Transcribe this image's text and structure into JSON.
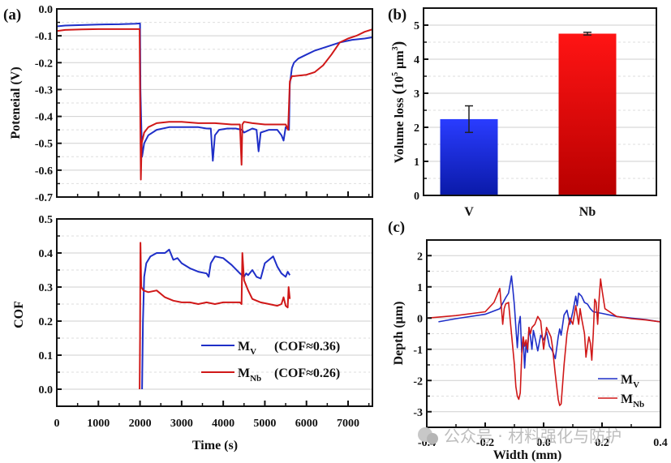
{
  "colors": {
    "blue": "#1f2fc8",
    "red": "#d01818",
    "bar_blue_top": "#2a3cff",
    "bar_blue_bottom": "#0a1aa8",
    "bar_red_top": "#ff1414",
    "bar_red_bottom": "#b80000",
    "grid_major": "#cfcfcf",
    "grid_minor": "#dedede"
  },
  "watermark": "公众号 · 材料强化与防护",
  "chart_data": [
    {
      "id": "a_potential",
      "panel_label": "(a)",
      "type": "line",
      "title": "",
      "xlabel": "",
      "ylabel": "Poteneial (V)",
      "xlim": [
        0,
        7600
      ],
      "ylim": [
        -0.7,
        0.0
      ],
      "x_ticks": [
        0,
        1000,
        2000,
        3000,
        4000,
        5000,
        6000,
        7000
      ],
      "y_ticks": [
        0.0,
        -0.1,
        -0.2,
        -0.3,
        -0.4,
        -0.5,
        -0.6,
        -0.7
      ],
      "y_tick_labels": [
        "0.0",
        "-0.1",
        "-0.2",
        "-0.3",
        "-0.4",
        "-0.5",
        "-0.6",
        "-0.7"
      ],
      "grid": true,
      "series": [
        {
          "name": "M_V",
          "color_key": "blue",
          "x": [
            0,
            200,
            600,
            1000,
            1500,
            1900,
            2000,
            2010,
            2050,
            2100,
            2200,
            2400,
            2700,
            3000,
            3400,
            3600,
            3700,
            3750,
            3800,
            3900,
            4100,
            4300,
            4450,
            4500,
            4700,
            4800,
            4850,
            4900,
            5100,
            5300,
            5400,
            5450,
            5500,
            5580,
            5600,
            5650,
            5700,
            5800,
            6000,
            6200,
            6500,
            6800,
            7100,
            7400,
            7600
          ],
          "y": [
            -0.065,
            -0.062,
            -0.06,
            -0.058,
            -0.057,
            -0.055,
            -0.054,
            -0.3,
            -0.55,
            -0.5,
            -0.47,
            -0.45,
            -0.44,
            -0.44,
            -0.44,
            -0.445,
            -0.445,
            -0.565,
            -0.47,
            -0.45,
            -0.445,
            -0.445,
            -0.45,
            -0.46,
            -0.445,
            -0.45,
            -0.53,
            -0.46,
            -0.45,
            -0.45,
            -0.47,
            -0.49,
            -0.44,
            -0.45,
            -0.28,
            -0.22,
            -0.2,
            -0.185,
            -0.17,
            -0.155,
            -0.14,
            -0.125,
            -0.115,
            -0.11,
            -0.105
          ]
        },
        {
          "name": "M_Nb",
          "color_key": "red",
          "x": [
            0,
            200,
            600,
            1000,
            1500,
            1990,
            2000,
            2020,
            2040,
            2100,
            2200,
            2400,
            2700,
            3000,
            3400,
            3800,
            4200,
            4400,
            4440,
            4460,
            4500,
            4700,
            5000,
            5300,
            5500,
            5560,
            5600,
            5650,
            5700,
            6000,
            6200,
            6400,
            6600,
            6800,
            7000,
            7200,
            7400,
            7600
          ],
          "y": [
            -0.082,
            -0.078,
            -0.076,
            -0.075,
            -0.075,
            -0.075,
            -0.3,
            -0.635,
            -0.5,
            -0.46,
            -0.44,
            -0.425,
            -0.42,
            -0.42,
            -0.425,
            -0.425,
            -0.43,
            -0.43,
            -0.58,
            -0.43,
            -0.42,
            -0.425,
            -0.43,
            -0.43,
            -0.43,
            -0.45,
            -0.27,
            -0.25,
            -0.25,
            -0.245,
            -0.235,
            -0.21,
            -0.17,
            -0.125,
            -0.11,
            -0.1,
            -0.085,
            -0.075
          ]
        }
      ]
    },
    {
      "id": "a_cof",
      "panel_label": "",
      "type": "line",
      "title": "",
      "xlabel": "Time (s)",
      "ylabel": "COF",
      "xlim": [
        0,
        7600
      ],
      "ylim": [
        -0.05,
        0.5
      ],
      "x_ticks": [
        0,
        1000,
        2000,
        3000,
        4000,
        5000,
        6000,
        7000
      ],
      "x_tick_labels": [
        "0",
        "1000",
        "2000",
        "3000",
        "4000",
        "5000",
        "6000",
        "7000"
      ],
      "y_ticks": [
        0.0,
        0.1,
        0.2,
        0.3,
        0.4,
        0.5
      ],
      "y_tick_labels": [
        "0.0",
        "0.1",
        "0.2",
        "0.3",
        "0.4",
        "0.5"
      ],
      "grid": true,
      "legend": {
        "placement": "bottom-right",
        "entries": [
          {
            "base": "M",
            "sub": "V",
            "note": "(COF≈0.36)",
            "color_key": "blue"
          },
          {
            "base": "M",
            "sub": "Nb",
            "note": "(COF≈0.26)",
            "color_key": "red"
          }
        ]
      },
      "series": [
        {
          "name": "M_V",
          "color_key": "blue",
          "x": [
            2050,
            2070,
            2100,
            2150,
            2250,
            2400,
            2600,
            2700,
            2800,
            2900,
            3000,
            3200,
            3400,
            3600,
            3650,
            3700,
            3800,
            4000,
            4200,
            4400,
            4500,
            4550,
            4600,
            4700,
            4800,
            4900,
            5000,
            5100,
            5200,
            5300,
            5400,
            5500,
            5550,
            5600
          ],
          "y": [
            0.0,
            0.2,
            0.33,
            0.37,
            0.39,
            0.4,
            0.4,
            0.41,
            0.38,
            0.385,
            0.37,
            0.355,
            0.345,
            0.34,
            0.33,
            0.37,
            0.39,
            0.385,
            0.365,
            0.34,
            0.33,
            0.34,
            0.335,
            0.35,
            0.33,
            0.325,
            0.37,
            0.38,
            0.39,
            0.36,
            0.34,
            0.33,
            0.345,
            0.335
          ]
        },
        {
          "name": "M_Nb",
          "color_key": "red",
          "x": [
            1990,
            2000,
            2010,
            2030,
            2080,
            2200,
            2400,
            2600,
            2800,
            3000,
            3200,
            3400,
            3600,
            3800,
            4000,
            4200,
            4400,
            4440,
            4460,
            4500,
            4600,
            4700,
            4900,
            5100,
            5300,
            5400,
            5450,
            5500,
            5550,
            5570,
            5600
          ],
          "y": [
            0.0,
            0.15,
            0.43,
            0.3,
            0.29,
            0.285,
            0.29,
            0.27,
            0.26,
            0.255,
            0.255,
            0.25,
            0.255,
            0.25,
            0.255,
            0.255,
            0.255,
            0.25,
            0.4,
            0.32,
            0.29,
            0.265,
            0.255,
            0.25,
            0.245,
            0.25,
            0.27,
            0.245,
            0.24,
            0.3,
            0.265
          ]
        }
      ]
    },
    {
      "id": "b_volume_loss",
      "panel_label": "(b)",
      "type": "bar",
      "title": "",
      "xlabel": "",
      "ylabel": "Volume loss (10^5 μm^3)",
      "ylabel_parts": {
        "prefix": "Volume loss ",
        "open": "(",
        "base": "10",
        "sup1": "5",
        "unit": " μm",
        "sup2": "3",
        "close": ")"
      },
      "categories": [
        "V",
        "Nb"
      ],
      "values": [
        2.24,
        4.75
      ],
      "errors": [
        0.39,
        0.04
      ],
      "ylim": [
        0,
        5.5
      ],
      "y_ticks": [
        0,
        1,
        2,
        3,
        4,
        5
      ],
      "y_tick_labels": [
        "0",
        "1",
        "2",
        "3",
        "4",
        "5"
      ],
      "grid": true
    },
    {
      "id": "c_depth_profile",
      "panel_label": "(c)",
      "type": "line",
      "title": "",
      "xlabel": "Width (mm)",
      "ylabel": "Depth (μm)",
      "xlim": [
        -0.4,
        0.4
      ],
      "ylim": [
        -3.5,
        2.5
      ],
      "x_ticks": [
        -0.4,
        -0.2,
        0.0,
        0.2,
        0.4
      ],
      "x_tick_labels": [
        "-0.4",
        "-0.2",
        "0.0",
        "0.2",
        "0.4"
      ],
      "y_ticks": [
        2,
        1,
        0,
        -1,
        -2,
        -3
      ],
      "y_tick_labels": [
        "2",
        "1",
        "0",
        "-1",
        "-2",
        "-3"
      ],
      "grid": true,
      "legend": {
        "placement": "bottom-right",
        "entries": [
          {
            "base": "M",
            "sub": "V",
            "color_key": "blue"
          },
          {
            "base": "M",
            "sub": "Nb",
            "color_key": "red"
          }
        ]
      },
      "series": [
        {
          "name": "M_V",
          "color_key": "blue",
          "x": [
            -0.36,
            -0.3,
            -0.2,
            -0.15,
            -0.13,
            -0.12,
            -0.11,
            -0.105,
            -0.1,
            -0.095,
            -0.09,
            -0.085,
            -0.08,
            -0.075,
            -0.07,
            -0.065,
            -0.06,
            -0.055,
            -0.05,
            -0.045,
            -0.04,
            -0.035,
            -0.03,
            -0.02,
            -0.01,
            0.0,
            0.01,
            0.02,
            0.03,
            0.04,
            0.05,
            0.055,
            0.06,
            0.07,
            0.08,
            0.09,
            0.1,
            0.11,
            0.115,
            0.12,
            0.13,
            0.14,
            0.15,
            0.16,
            0.17,
            0.2,
            0.25,
            0.3,
            0.35,
            0.4
          ],
          "y": [
            -0.12,
            -0.02,
            0.12,
            0.3,
            0.65,
            0.8,
            1.35,
            0.9,
            0.4,
            -0.3,
            -0.95,
            -0.2,
            0.05,
            -1.1,
            -0.6,
            -1.6,
            -0.8,
            -1.1,
            -0.3,
            -0.6,
            -1.0,
            -0.4,
            -0.6,
            -1.05,
            -0.55,
            -0.7,
            -0.45,
            -0.9,
            -1.05,
            -1.3,
            -0.6,
            -0.35,
            -0.55,
            0.1,
            0.25,
            -0.2,
            0.2,
            0.7,
            0.4,
            0.8,
            0.7,
            0.5,
            0.45,
            0.3,
            0.2,
            0.15,
            0.05,
            0.0,
            -0.05,
            -0.12
          ]
        },
        {
          "name": "M_Nb",
          "color_key": "red",
          "x": [
            -0.4,
            -0.3,
            -0.2,
            -0.17,
            -0.15,
            -0.145,
            -0.14,
            -0.135,
            -0.13,
            -0.12,
            -0.11,
            -0.1,
            -0.095,
            -0.09,
            -0.085,
            -0.08,
            -0.075,
            -0.07,
            -0.065,
            -0.06,
            -0.055,
            -0.05,
            -0.045,
            -0.04,
            -0.03,
            -0.02,
            -0.01,
            0.0,
            0.01,
            0.02,
            0.025,
            0.03,
            0.04,
            0.05,
            0.055,
            0.06,
            0.07,
            0.08,
            0.09,
            0.1,
            0.11,
            0.12,
            0.125,
            0.13,
            0.14,
            0.145,
            0.15,
            0.155,
            0.16,
            0.165,
            0.17,
            0.175,
            0.18,
            0.185,
            0.19,
            0.195,
            0.2,
            0.21,
            0.25,
            0.3,
            0.35,
            0.4
          ],
          "y": [
            0.0,
            0.08,
            0.2,
            0.5,
            0.95,
            0.4,
            -0.2,
            0.3,
            0.45,
            0.5,
            -0.5,
            -1.5,
            -2.2,
            -2.5,
            -2.6,
            -2.4,
            -1.2,
            -0.6,
            -0.9,
            -0.7,
            -1.0,
            -0.3,
            -0.5,
            -0.3,
            -0.2,
            0.05,
            -0.1,
            -1.0,
            -0.3,
            -0.5,
            -0.6,
            -0.9,
            -1.8,
            -2.6,
            -2.8,
            -2.75,
            -1.5,
            -0.5,
            0.0,
            -0.2,
            0.4,
            -0.2,
            0.3,
            0.0,
            -0.5,
            -1.25,
            -0.9,
            -0.6,
            -0.8,
            -1.35,
            -0.5,
            0.6,
            0.5,
            -0.2,
            0.6,
            1.25,
            0.9,
            0.3,
            0.05,
            -0.02,
            -0.06,
            -0.12
          ]
        }
      ]
    }
  ]
}
